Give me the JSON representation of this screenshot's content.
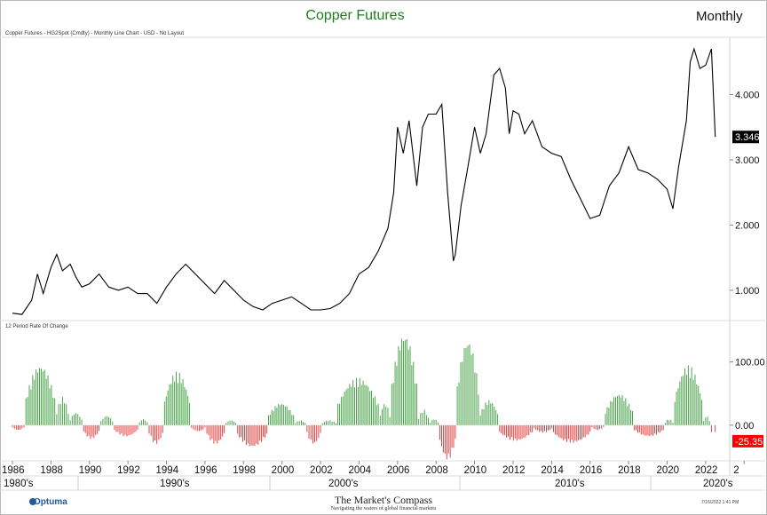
{
  "header": {
    "title": "Copper Futures",
    "period": "Monthly",
    "subtitle": "Copper Futures - HG2Spot (Cmdty) - Monthly Line Chart - USD - No Layout",
    "roc_label": "12 Period Rate Of Change"
  },
  "footer": {
    "logo": "Optuma",
    "center_title": "The Market's Compass",
    "tagline": "Navigating the waters of global financial markets",
    "date": "7/16/2022 1:41 PM"
  },
  "colors": {
    "title": "#1e7d1e",
    "line": "#000000",
    "positive": "#3a9a3a",
    "negative": "#e03030",
    "last_label_bg": "#000000",
    "roc_label_bg": "#ff0000"
  },
  "chart_data": [
    {
      "type": "line",
      "name": "price",
      "ylim": [
        0.55,
        4.85
      ],
      "yticks": [
        "1.000",
        "2.000",
        "3.000",
        "4.000"
      ],
      "ytick_values": [
        1,
        2,
        3,
        4
      ],
      "last_value_label": "3.346",
      "x": [
        1986.0,
        1986.5,
        1987.0,
        1987.3,
        1987.6,
        1988.0,
        1988.3,
        1988.6,
        1989.0,
        1989.3,
        1989.6,
        1990.0,
        1990.5,
        1991.0,
        1991.5,
        1992.0,
        1992.5,
        1993.0,
        1993.5,
        1994.0,
        1994.5,
        1995.0,
        1995.5,
        1996.0,
        1996.5,
        1997.0,
        1997.5,
        1998.0,
        1998.5,
        1999.0,
        1999.5,
        2000.0,
        2000.5,
        2001.0,
        2001.5,
        2002.0,
        2002.5,
        2003.0,
        2003.5,
        2004.0,
        2004.5,
        2005.0,
        2005.5,
        2005.8,
        2006.0,
        2006.3,
        2006.6,
        2007.0,
        2007.3,
        2007.6,
        2008.0,
        2008.3,
        2008.6,
        2008.9,
        2009.0,
        2009.3,
        2009.6,
        2010.0,
        2010.3,
        2010.6,
        2011.0,
        2011.3,
        2011.6,
        2011.8,
        2012.0,
        2012.3,
        2012.6,
        2013.0,
        2013.5,
        2014.0,
        2014.5,
        2015.0,
        2015.5,
        2016.0,
        2016.5,
        2017.0,
        2017.5,
        2018.0,
        2018.5,
        2019.0,
        2019.5,
        2020.0,
        2020.3,
        2020.6,
        2021.0,
        2021.2,
        2021.4,
        2021.7,
        2022.0,
        2022.3,
        2022.5
      ],
      "y": [
        0.65,
        0.63,
        0.85,
        1.25,
        0.95,
        1.35,
        1.55,
        1.3,
        1.4,
        1.2,
        1.05,
        1.1,
        1.25,
        1.05,
        1.0,
        1.05,
        0.95,
        0.95,
        0.8,
        1.05,
        1.25,
        1.4,
        1.25,
        1.1,
        0.95,
        1.15,
        1.0,
        0.85,
        0.75,
        0.7,
        0.8,
        0.85,
        0.9,
        0.8,
        0.7,
        0.7,
        0.72,
        0.8,
        0.95,
        1.25,
        1.35,
        1.6,
        1.95,
        2.5,
        3.5,
        3.1,
        3.6,
        2.6,
        3.5,
        3.7,
        3.7,
        3.85,
        2.5,
        1.45,
        1.55,
        2.3,
        2.8,
        3.5,
        3.1,
        3.4,
        4.3,
        4.4,
        4.1,
        3.4,
        3.75,
        3.7,
        3.4,
        3.6,
        3.2,
        3.1,
        3.05,
        2.7,
        2.4,
        2.1,
        2.15,
        2.6,
        2.8,
        3.2,
        2.85,
        2.8,
        2.7,
        2.55,
        2.25,
        2.9,
        3.6,
        4.5,
        4.7,
        4.4,
        4.45,
        4.7,
        3.35
      ]
    },
    {
      "type": "bar",
      "name": "12 Period Rate Of Change",
      "ylim": [
        -55,
        150
      ],
      "yticks": [
        "100.00",
        "0.00"
      ],
      "ytick_values": [
        100,
        0
      ],
      "last_value_label": "-25.35",
      "segments": [
        {
          "x0": 1986.0,
          "x1": 1986.6,
          "peak": -8
        },
        {
          "x0": 1986.7,
          "x1": 1988.2,
          "peak": 95
        },
        {
          "x0": 1988.3,
          "x1": 1988.9,
          "peak": 45
        },
        {
          "x0": 1989.0,
          "x1": 1989.6,
          "peak": 20
        },
        {
          "x0": 1989.7,
          "x1": 1990.5,
          "peak": -22
        },
        {
          "x0": 1990.6,
          "x1": 1991.2,
          "peak": 15
        },
        {
          "x0": 1991.3,
          "x1": 1992.5,
          "peak": -18
        },
        {
          "x0": 1992.6,
          "x1": 1993.0,
          "peak": 10
        },
        {
          "x0": 1993.1,
          "x1": 1993.8,
          "peak": -30
        },
        {
          "x0": 1993.9,
          "x1": 1995.2,
          "peak": 85
        },
        {
          "x0": 1995.3,
          "x1": 1996.0,
          "peak": -10
        },
        {
          "x0": 1996.1,
          "x1": 1997.0,
          "peak": -30
        },
        {
          "x0": 1997.1,
          "x1": 1997.6,
          "peak": 8
        },
        {
          "x0": 1997.7,
          "x1": 1999.2,
          "peak": -35
        },
        {
          "x0": 1999.3,
          "x1": 2000.6,
          "peak": 35
        },
        {
          "x0": 2000.7,
          "x1": 2001.2,
          "peak": 8
        },
        {
          "x0": 2001.3,
          "x1": 2002.0,
          "peak": -30
        },
        {
          "x0": 2002.1,
          "x1": 2002.8,
          "peak": 8
        },
        {
          "x0": 2002.9,
          "x1": 2005.0,
          "peak": 75
        },
        {
          "x0": 2005.1,
          "x1": 2005.6,
          "peak": 35
        },
        {
          "x0": 2005.7,
          "x1": 2007.0,
          "peak": 145
        },
        {
          "x0": 2007.1,
          "x1": 2007.6,
          "peak": 25
        },
        {
          "x0": 2007.7,
          "x1": 2008.1,
          "peak": 10
        },
        {
          "x0": 2008.2,
          "x1": 2009.0,
          "peak": -55
        },
        {
          "x0": 2009.1,
          "x1": 2010.2,
          "peak": 135
        },
        {
          "x0": 2010.3,
          "x1": 2011.2,
          "peak": 40
        },
        {
          "x0": 2011.3,
          "x1": 2013.0,
          "peak": -25
        },
        {
          "x0": 2013.1,
          "x1": 2014.0,
          "peak": -12
        },
        {
          "x0": 2014.1,
          "x1": 2016.0,
          "peak": -28
        },
        {
          "x0": 2016.1,
          "x1": 2016.7,
          "peak": -8
        },
        {
          "x0": 2016.8,
          "x1": 2018.2,
          "peak": 50
        },
        {
          "x0": 2018.3,
          "x1": 2019.8,
          "peak": -18
        },
        {
          "x0": 2019.9,
          "x1": 2020.3,
          "peak": 10
        },
        {
          "x0": 2020.4,
          "x1": 2021.8,
          "peak": 95
        },
        {
          "x0": 2021.9,
          "x1": 2022.2,
          "peak": 15
        },
        {
          "x0": 2022.3,
          "x1": 2022.5,
          "peak": -25.35
        }
      ]
    }
  ],
  "xaxis": {
    "years": [
      "1986",
      "1988",
      "1990",
      "1992",
      "1994",
      "1996",
      "1998",
      "2000",
      "2002",
      "2004",
      "2006",
      "2008",
      "2010",
      "2012",
      "2014",
      "2016",
      "2018",
      "2020",
      "2022",
      "2"
    ],
    "decades": [
      "1980's",
      "1990's",
      "2000's",
      "2010's",
      "2020's"
    ]
  }
}
